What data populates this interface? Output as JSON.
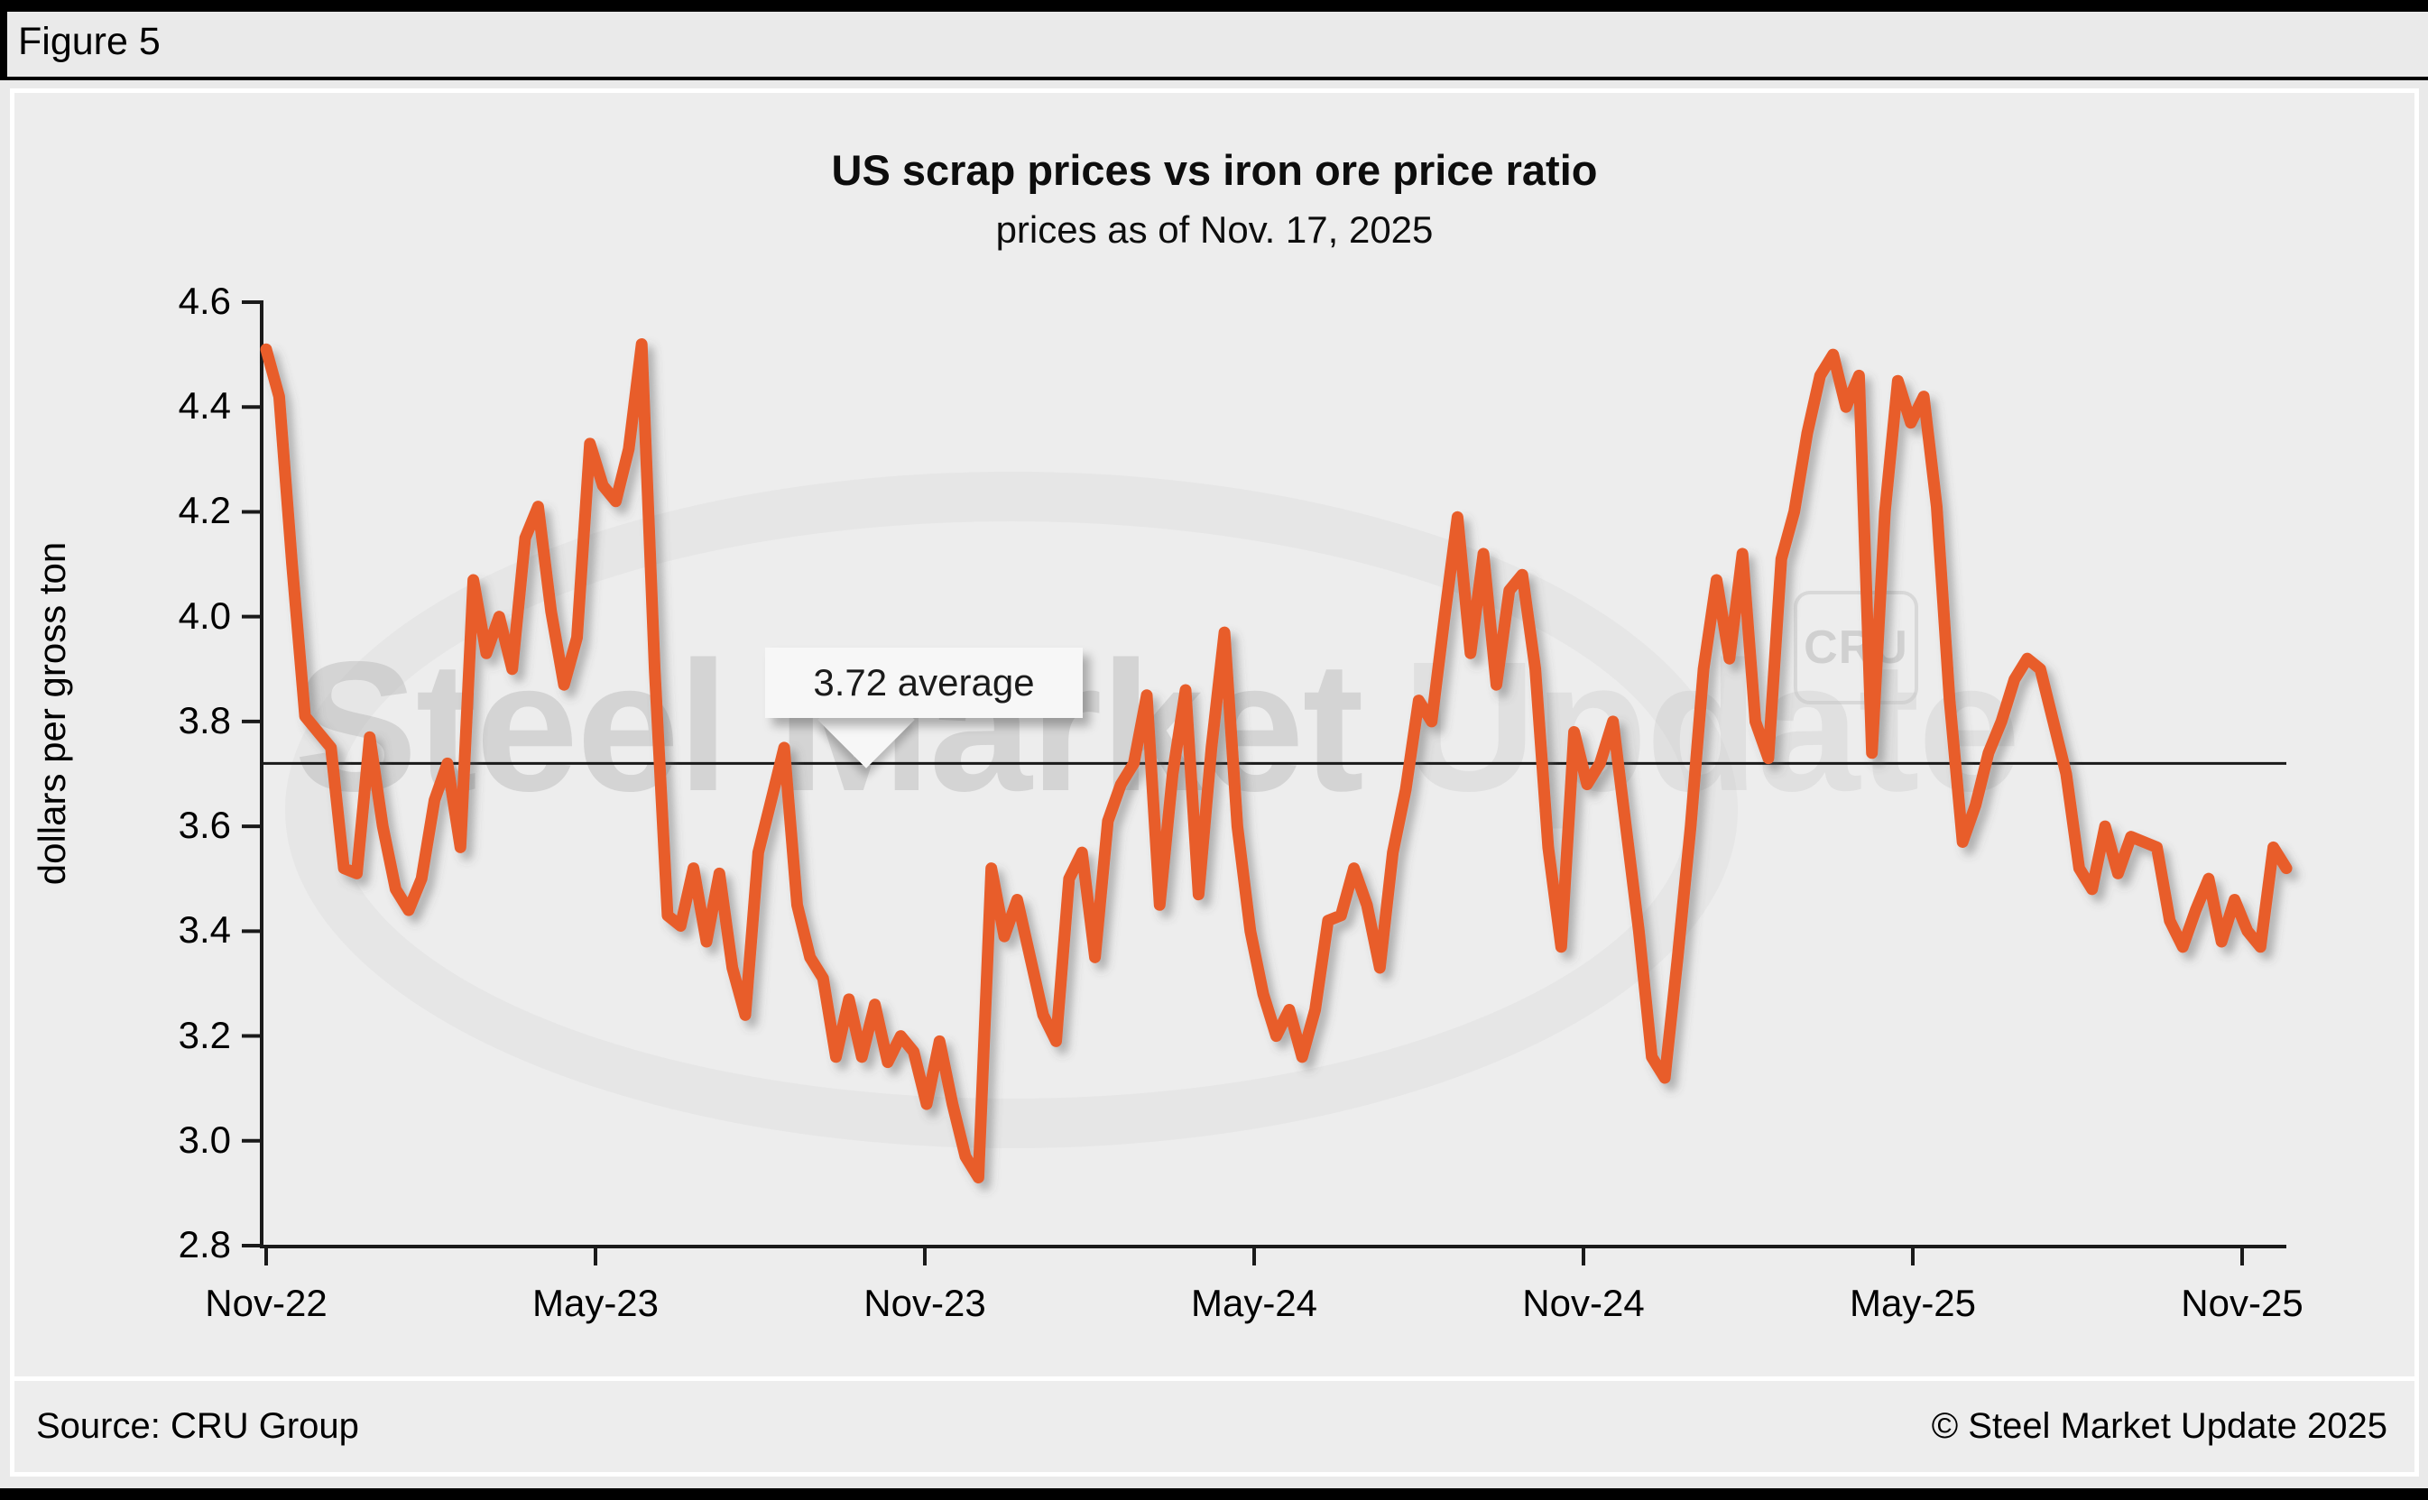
{
  "figure_label": "Figure 5",
  "header": {
    "title": "US scrap prices vs iron ore price ratio",
    "subtitle": "prices as of Nov. 17, 2025"
  },
  "watermark": {
    "text_primary": "Steel Market",
    "text_secondary": "Update",
    "badge": "CRU"
  },
  "callout": {
    "label": "3.72 average"
  },
  "footer": {
    "source": "Source: CRU Group",
    "copyright": "© Steel Market Update 2025"
  },
  "colors": {
    "line": "#E85D2C",
    "average_line": "#1a1a1a",
    "axis": "#1a1a1a"
  },
  "chart_data": {
    "type": "line",
    "title": "US scrap prices vs iron ore price ratio",
    "subtitle": "prices as of Nov. 17, 2025",
    "ylabel": "dollars per gross ton",
    "xlabel": "",
    "ylim": [
      2.8,
      4.6
    ],
    "y_ticks": [
      "4.6",
      "4.4",
      "4.2",
      "4.0",
      "3.8",
      "3.6",
      "3.4",
      "3.2",
      "3.0",
      "2.8"
    ],
    "y_tick_values": [
      4.6,
      4.4,
      4.2,
      4.0,
      3.8,
      3.6,
      3.4,
      3.2,
      3.0,
      2.8
    ],
    "x_tick_labels": [
      "Nov-22",
      "May-23",
      "Nov-23",
      "May-24",
      "Nov-24",
      "May-25",
      "Nov-25"
    ],
    "average_value": 3.72,
    "grid": false,
    "legend": "none",
    "series_frequency": "weekly",
    "x_range": "Nov 2022 to Nov 17, 2025",
    "values": [
      4.51,
      4.42,
      4.1,
      3.81,
      3.78,
      3.75,
      3.52,
      3.51,
      3.77,
      3.6,
      3.48,
      3.44,
      3.5,
      3.65,
      3.72,
      3.56,
      4.07,
      3.93,
      4.0,
      3.9,
      4.15,
      4.21,
      4.01,
      3.87,
      3.96,
      4.33,
      4.25,
      4.22,
      4.32,
      4.52,
      3.9,
      3.43,
      3.41,
      3.52,
      3.38,
      3.51,
      3.33,
      3.24,
      3.55,
      3.65,
      3.75,
      3.45,
      3.35,
      3.31,
      3.16,
      3.27,
      3.16,
      3.26,
      3.15,
      3.2,
      3.17,
      3.07,
      3.19,
      3.07,
      2.97,
      2.93,
      3.52,
      3.39,
      3.46,
      3.35,
      3.24,
      3.19,
      3.5,
      3.55,
      3.35,
      3.61,
      3.68,
      3.72,
      3.85,
      3.45,
      3.7,
      3.86,
      3.47,
      3.75,
      3.97,
      3.6,
      3.4,
      3.28,
      3.2,
      3.25,
      3.16,
      3.25,
      3.42,
      3.43,
      3.52,
      3.45,
      3.33,
      3.55,
      3.67,
      3.84,
      3.8,
      4.0,
      4.19,
      3.93,
      4.12,
      3.87,
      4.05,
      4.08,
      3.9,
      3.56,
      3.37,
      3.78,
      3.68,
      3.72,
      3.8,
      3.6,
      3.4,
      3.16,
      3.12,
      3.35,
      3.6,
      3.9,
      4.07,
      3.92,
      4.12,
      3.8,
      3.73,
      4.11,
      4.2,
      4.35,
      4.46,
      4.5,
      4.4,
      4.46,
      3.74,
      4.2,
      4.45,
      4.37,
      4.42,
      4.21,
      3.84,
      3.57,
      3.64,
      3.74,
      3.8,
      3.88,
      3.92,
      3.9,
      3.8,
      3.7,
      3.52,
      3.48,
      3.6,
      3.51,
      3.58,
      3.57,
      3.56,
      3.42,
      3.37,
      3.44,
      3.5,
      3.38,
      3.46,
      3.4,
      3.37,
      3.56,
      3.52
    ]
  }
}
